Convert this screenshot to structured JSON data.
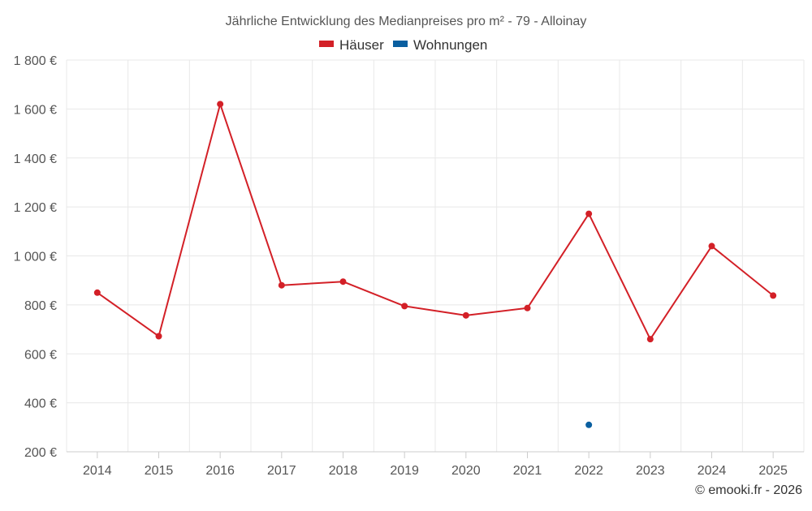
{
  "chart_data": {
    "type": "line",
    "title": "Jährliche Entwicklung des Medianpreises pro m² - 79 - Alloinay",
    "xlabel": "",
    "ylabel": "",
    "categories": [
      "2014",
      "2015",
      "2016",
      "2017",
      "2018",
      "2019",
      "2020",
      "2021",
      "2022",
      "2023",
      "2024",
      "2025"
    ],
    "ylim": [
      200,
      1800
    ],
    "yticks": [
      200,
      400,
      600,
      800,
      1000,
      1200,
      1400,
      1600,
      1800
    ],
    "ytick_labels": [
      "200 €",
      "400 €",
      "600 €",
      "800 €",
      "1 000 €",
      "1 200 €",
      "1 400 €",
      "1 600 €",
      "1 800 €"
    ],
    "grid": true,
    "legend_position": "top-center",
    "series": [
      {
        "name": "Häuser",
        "color": "#d32027",
        "values": [
          850,
          672,
          1620,
          880,
          895,
          795,
          757,
          787,
          1172,
          660,
          1040,
          838
        ]
      },
      {
        "name": "Wohnungen",
        "color": "#0a5fa0",
        "values": [
          null,
          null,
          null,
          null,
          null,
          null,
          null,
          null,
          310,
          null,
          null,
          null
        ]
      }
    ]
  },
  "credit": "© emooki.fr - 2026"
}
